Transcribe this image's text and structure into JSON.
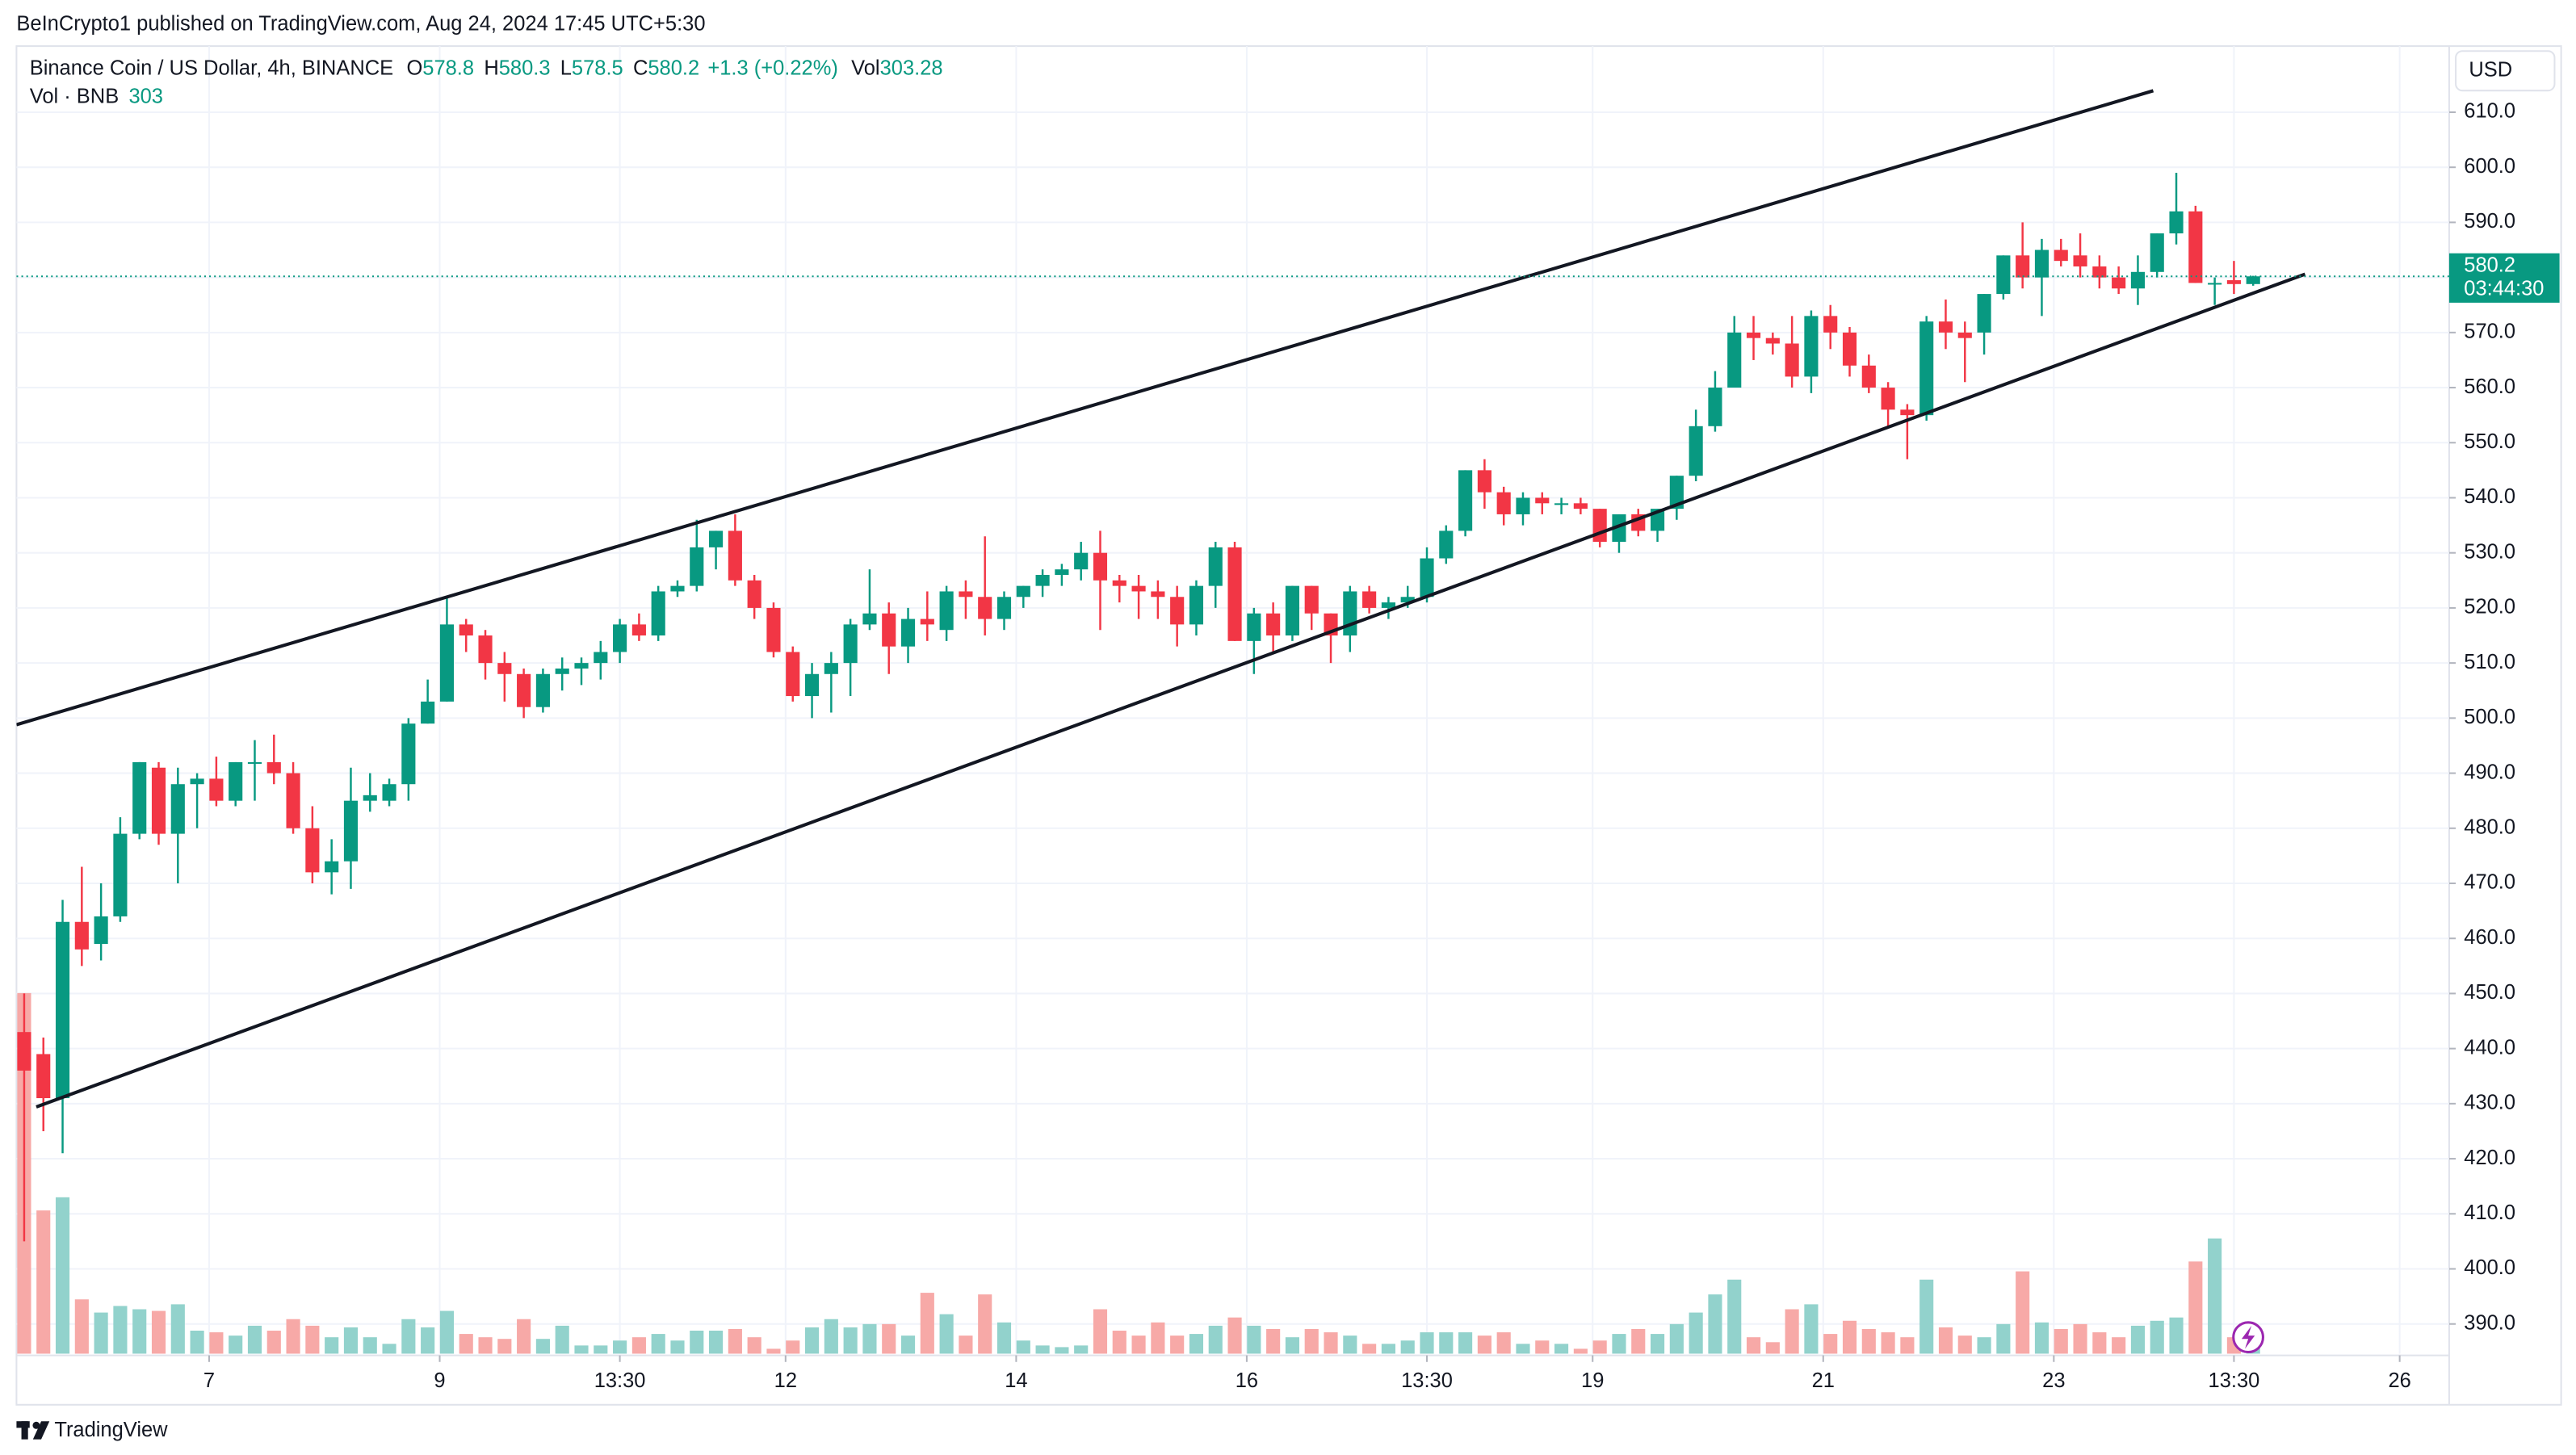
{
  "header": {
    "publisher_line": "BeInCrypto1 published on TradingView.com, Aug 24, 2024 17:45 UTC+5:30"
  },
  "legend": {
    "symbol": "Binance Coin / US Dollar, 4h, BINANCE",
    "fields": [
      {
        "key": "O",
        "value": 578.8
      },
      {
        "key": "H",
        "value": 580.3
      },
      {
        "key": "L",
        "value": 578.5
      },
      {
        "key": "C",
        "value": 580.2
      }
    ],
    "change": "+1.3 (+0.22%)",
    "vol_key": "Vol",
    "vol_value": 303.28
  },
  "volume_legend": {
    "label": "Vol · BNB",
    "value": 303
  },
  "currency": "USD",
  "brand": "TradingView",
  "chart_data": {
    "type": "candlestick",
    "up_color": "#089981",
    "down_color": "#f23645",
    "volume_up_color": "#92d2cc",
    "volume_down_color": "#f7a9a7",
    "grid": true,
    "xlim": [
      -0.4,
      126.2
    ],
    "xticks": [
      {
        "value": 9.625,
        "label": "7"
      },
      {
        "value": 21.625,
        "label": "9"
      },
      {
        "value": 31,
        "label": "13:30"
      },
      {
        "value": 39.625,
        "label": "12"
      },
      {
        "value": 51.625,
        "label": "14"
      },
      {
        "value": 63.625,
        "label": "16"
      },
      {
        "value": 73,
        "label": "13:30"
      },
      {
        "value": 81.625,
        "label": "19"
      },
      {
        "value": 93.625,
        "label": "21"
      },
      {
        "value": 105.625,
        "label": "23"
      },
      {
        "value": 115,
        "label": "13:30"
      },
      {
        "value": 123.625,
        "label": "26"
      }
    ],
    "ylim": [
      384.6,
      622
    ],
    "yticks": [
      {
        "value": 390,
        "label": "390.0"
      },
      {
        "value": 400,
        "label": "400.0"
      },
      {
        "value": 410,
        "label": "410.0"
      },
      {
        "value": 420,
        "label": "420.0"
      },
      {
        "value": 430,
        "label": "430.0"
      },
      {
        "value": 440,
        "label": "440.0"
      },
      {
        "value": 450,
        "label": "450.0"
      },
      {
        "value": 460,
        "label": "460.0"
      },
      {
        "value": 470,
        "label": "470.0"
      },
      {
        "value": 480,
        "label": "480.0"
      },
      {
        "value": 490,
        "label": "490.0"
      },
      {
        "value": 500,
        "label": "500.0"
      },
      {
        "value": 510,
        "label": "510.0"
      },
      {
        "value": 520,
        "label": "520.0"
      },
      {
        "value": 530,
        "label": "530.0"
      },
      {
        "value": 540,
        "label": "540.0"
      },
      {
        "value": 550,
        "label": "550.0"
      },
      {
        "value": 560,
        "label": "560.0"
      },
      {
        "value": 570,
        "label": "570.0"
      },
      {
        "value": 580,
        "label": "580.0"
      },
      {
        "value": 590,
        "label": "590.0"
      },
      {
        "value": 600,
        "label": "600.0"
      },
      {
        "value": 610,
        "label": "610.0"
      }
    ],
    "volume_ylim": [
      0,
      23820
    ],
    "x": [
      0,
      1,
      2,
      3,
      4,
      5,
      6,
      7,
      8,
      9,
      10,
      11,
      12,
      13,
      14,
      15,
      16,
      17,
      18,
      19,
      20,
      21,
      22,
      23,
      24,
      25,
      26,
      27,
      28,
      29,
      30,
      31,
      32,
      33,
      34,
      35,
      36,
      37,
      38,
      39,
      40,
      41,
      42,
      43,
      44,
      45,
      46,
      47,
      48,
      49,
      50,
      51,
      52,
      53,
      54,
      55,
      56,
      57,
      58,
      59,
      60,
      61,
      62,
      63,
      64,
      65,
      66,
      67,
      68,
      69,
      70,
      71,
      72,
      73,
      74,
      75,
      76,
      77,
      78,
      79,
      80,
      81,
      82,
      83,
      84,
      85,
      86,
      87,
      88,
      89,
      90,
      91,
      92,
      93,
      94,
      95,
      96,
      97,
      98,
      99,
      100,
      101,
      102,
      103,
      104,
      105,
      106,
      107,
      108,
      109,
      110,
      111,
      112,
      113,
      114,
      115,
      116
    ],
    "open": [
      443,
      439,
      431,
      463,
      459,
      464,
      479,
      491,
      479,
      488,
      489,
      485,
      492,
      492,
      490,
      480,
      472,
      474,
      485,
      485,
      488,
      499,
      503,
      517,
      515,
      510,
      508,
      502,
      508,
      509,
      510,
      512,
      517,
      515,
      523,
      524,
      531,
      534,
      525,
      520,
      512,
      504,
      508,
      510,
      517,
      519,
      513,
      518,
      516,
      523,
      522,
      518,
      522,
      524,
      526,
      527,
      530,
      525,
      524,
      523,
      522,
      517,
      524,
      531,
      514,
      519,
      515,
      524,
      519,
      515,
      523,
      520,
      521,
      522,
      529,
      534,
      545,
      541,
      537,
      540,
      539,
      539,
      538,
      532,
      537,
      534,
      538,
      544,
      553,
      560,
      570,
      569,
      568,
      562,
      573,
      570,
      564,
      560,
      556,
      555,
      572,
      570,
      570,
      577,
      584,
      580,
      585,
      584,
      582,
      580,
      578,
      581,
      588,
      592,
      579,
      579.5,
      578.8
    ],
    "high": [
      450,
      442,
      467,
      473,
      470,
      482,
      492,
      492,
      491,
      490,
      493,
      492,
      496,
      497,
      492,
      484,
      478,
      491,
      490,
      489,
      500,
      507,
      522,
      518,
      516,
      512,
      509,
      509,
      511,
      511,
      514,
      518,
      519,
      524,
      525,
      536,
      534,
      537,
      526,
      521,
      513,
      510,
      512,
      518,
      527,
      521,
      520,
      523,
      524,
      525,
      533,
      523,
      524,
      527,
      528,
      532,
      534,
      526,
      526,
      525,
      524,
      525,
      532,
      532,
      520,
      521,
      524,
      524,
      519,
      524,
      524,
      522,
      524,
      531,
      535,
      545,
      547,
      542,
      541,
      541,
      540,
      540,
      538,
      537,
      538,
      538,
      544,
      556,
      563,
      573,
      573,
      570,
      573,
      574,
      575,
      571,
      566,
      561,
      557,
      573,
      576,
      572,
      577,
      584,
      590,
      587,
      587,
      588,
      584,
      582,
      584,
      588,
      599,
      593,
      580,
      583,
      580.3
    ],
    "low": [
      405,
      425,
      421,
      455,
      456,
      463,
      478,
      477,
      470,
      480,
      484,
      484,
      485,
      488,
      479,
      470,
      468,
      469,
      483,
      484,
      485,
      499,
      503,
      512,
      507,
      503,
      500,
      501,
      505,
      506,
      507,
      510,
      514,
      514,
      522,
      523,
      527,
      524,
      518,
      511,
      503,
      500,
      501,
      504,
      516,
      508,
      510,
      514,
      514,
      518,
      515,
      516,
      520,
      522,
      524,
      525,
      516,
      521,
      518,
      518,
      513,
      515,
      520,
      514,
      508,
      512,
      514,
      516,
      510,
      512,
      519,
      518,
      520,
      521,
      528,
      533,
      538,
      535,
      535,
      537,
      537,
      537,
      531,
      530,
      533,
      532,
      536,
      543,
      552,
      560,
      565,
      566,
      560,
      559,
      567,
      562,
      559,
      553,
      547,
      554,
      567,
      561,
      566,
      576,
      578,
      573,
      582,
      580,
      578,
      577,
      575,
      580,
      586,
      579,
      575,
      577,
      578.5
    ],
    "close": [
      436,
      431,
      463,
      458,
      464,
      479,
      492,
      479,
      488,
      489,
      485,
      492,
      492,
      490,
      480,
      472,
      474,
      485,
      486,
      488,
      499,
      503,
      517,
      515,
      510,
      508,
      502,
      508,
      509,
      510,
      512,
      517,
      515,
      523,
      524,
      531,
      534,
      525,
      520,
      512,
      504,
      508,
      510,
      517,
      519,
      513,
      518,
      517,
      523,
      522,
      518,
      522,
      524,
      526,
      527,
      530,
      525,
      524,
      523,
      522,
      517,
      524,
      531,
      514,
      519,
      515,
      524,
      519,
      515,
      523,
      520,
      521,
      522,
      529,
      534,
      545,
      541,
      537,
      540,
      539,
      539,
      538,
      532,
      537,
      534,
      538,
      544,
      553,
      560,
      570,
      569,
      568,
      562,
      573,
      570,
      564,
      560,
      556,
      555,
      572,
      570,
      569,
      577,
      584,
      580,
      585,
      583,
      582,
      580,
      578,
      581,
      588,
      592,
      579,
      579,
      578.8,
      580.2
    ],
    "volume": [
      6570,
      2610,
      2850,
      990,
      750,
      870,
      810,
      780,
      900,
      420,
      390,
      330,
      510,
      420,
      630,
      510,
      300,
      480,
      300,
      180,
      630,
      480,
      780,
      360,
      300,
      270,
      630,
      270,
      510,
      150,
      150,
      240,
      300,
      360,
      240,
      420,
      420,
      450,
      300,
      90,
      240,
      480,
      630,
      480,
      540,
      540,
      330,
      1110,
      720,
      330,
      1080,
      570,
      240,
      150,
      120,
      150,
      810,
      420,
      330,
      570,
      330,
      360,
      510,
      660,
      510,
      450,
      300,
      450,
      390,
      330,
      180,
      180,
      240,
      390,
      390,
      390,
      330,
      390,
      180,
      240,
      180,
      90,
      240,
      360,
      450,
      360,
      540,
      750,
      1080,
      1350,
      300,
      210,
      810,
      900,
      360,
      600,
      450,
      390,
      300,
      1350,
      480,
      330,
      300,
      540,
      1500,
      570,
      450,
      540,
      390,
      300,
      510,
      600,
      660,
      1680,
      2100,
      300,
      303.28
    ],
    "trendlines": [
      {
        "x": [
          -0.4,
          110.8
        ],
        "y": [
          498.8,
          613.9
        ],
        "color": "#131722"
      },
      {
        "x": [
          0.63,
          118.7
        ],
        "y": [
          429.4,
          580.6
        ],
        "color": "#131722"
      }
    ],
    "last_price": 580.2,
    "countdown": "03:44:30",
    "price_tag_color": "#089981"
  }
}
